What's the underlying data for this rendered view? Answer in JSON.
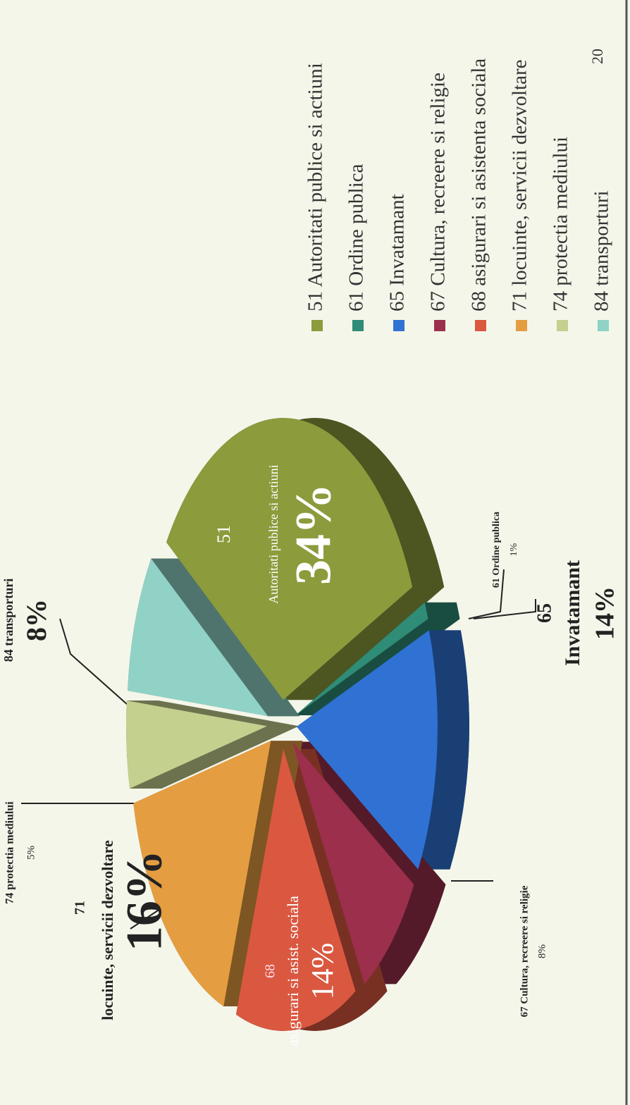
{
  "chart_data": {
    "type": "pie",
    "categories": [
      "51 Autoritati publice si actiuni",
      "61 Ordine publica",
      "65 Invatamant",
      "67 Cultura, recreere si religie",
      "68 asigurari si asistenta sociala",
      "71 locuinte, servicii dezvoltare",
      "74 protectia mediului",
      "84 transporturi"
    ],
    "values": [
      34,
      1,
      14,
      8,
      14,
      16,
      5,
      8
    ],
    "value_labels": [
      "34%",
      "1%",
      "14%",
      "8%",
      "14%",
      "16%",
      "5%",
      "8%"
    ],
    "labels": [
      [
        "51",
        "Autoritati publice si actiuni"
      ],
      [
        "61 Ordine publica"
      ],
      [
        "65",
        "Invatamant"
      ],
      [
        "67 Cultura, recreere si religie"
      ],
      [
        "68",
        "asigurari si asist. sociala"
      ],
      [
        "71",
        "locuinte, servicii dezvoltare"
      ],
      [
        "74 protectia mediului"
      ],
      [
        "84 transporturi"
      ]
    ],
    "colors": [
      "#8c9b3c",
      "#2f8c76",
      "#2f72d4",
      "#9b2f4c",
      "#da5840",
      "#e49d40",
      "#c4d08e",
      "#90d2c6"
    ]
  },
  "page_number": "20"
}
